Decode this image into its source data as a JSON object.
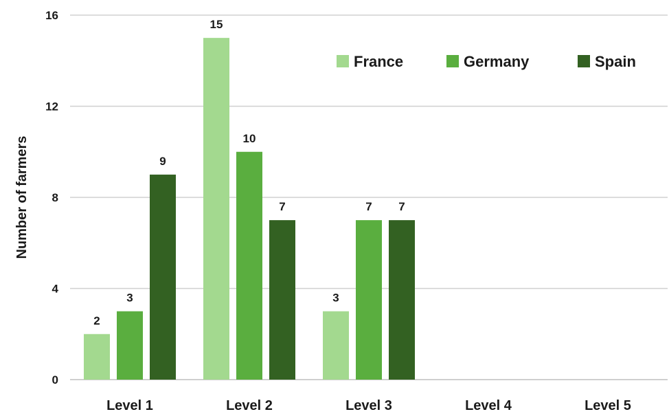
{
  "chart_data": {
    "type": "bar",
    "categories": [
      "Level 1",
      "Level 2",
      "Level 3",
      "Level 4",
      "Level 5"
    ],
    "series": [
      {
        "name": "France",
        "color": "#a3d98f",
        "values": [
          2,
          15,
          3,
          0,
          0
        ]
      },
      {
        "name": "Germany",
        "color": "#5aae3f",
        "values": [
          3,
          10,
          7,
          0,
          0
        ]
      },
      {
        "name": "Spain",
        "color": "#336122",
        "values": [
          9,
          7,
          7,
          0,
          0
        ]
      }
    ],
    "data_labels": [
      [
        "2",
        "15",
        "3",
        "",
        ""
      ],
      [
        "3",
        "10",
        "7",
        "",
        ""
      ],
      [
        "9",
        "7",
        "7",
        "",
        ""
      ]
    ],
    "yticks": [
      0,
      4,
      8,
      12,
      16
    ],
    "ylim": [
      0,
      16
    ],
    "xlabel": "",
    "ylabel": "Number of farmers",
    "grid": true,
    "legend_position": "top-right"
  }
}
